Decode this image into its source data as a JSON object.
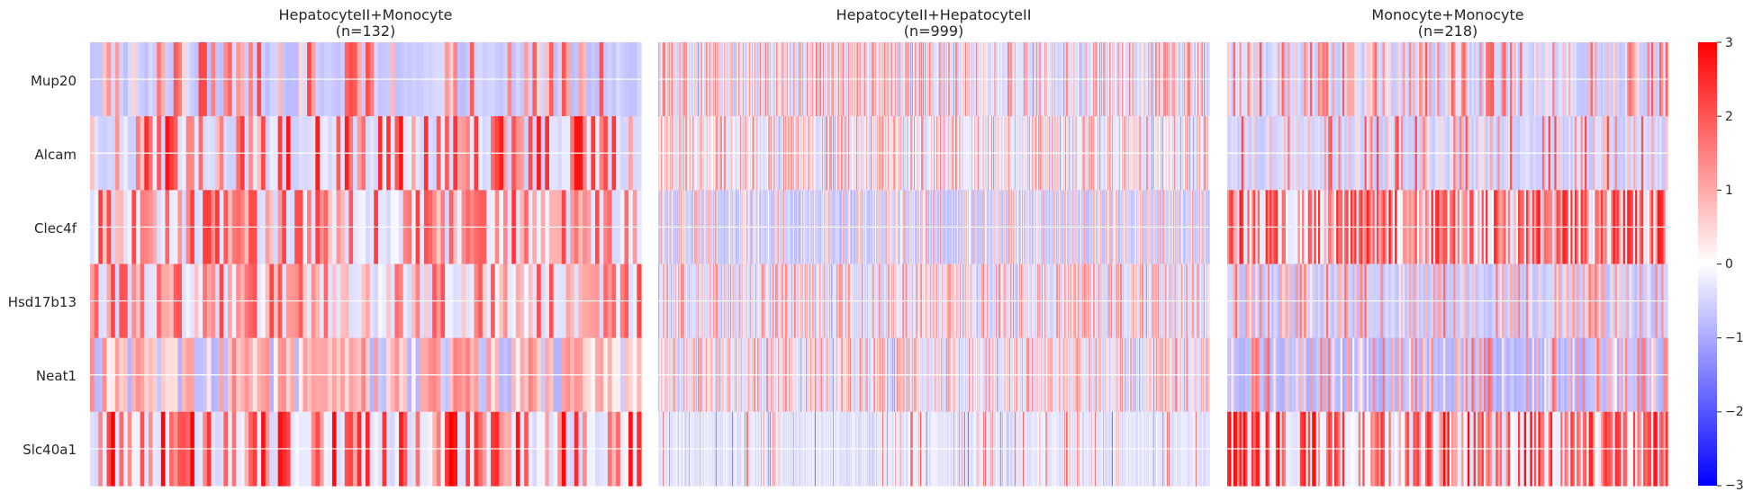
{
  "chart_data": {
    "type": "heatmap",
    "genes": [
      "Mup20",
      "Alcam",
      "Clec4f",
      "Hsd17b13",
      "Neat1",
      "Slc40a1"
    ],
    "panels": [
      {
        "title": "HepatocyteII+Monocyte",
        "subtitle": "(n=132)",
        "n_cells": 132,
        "gene_expression_pattern": [
          {
            "gene": "Mup20",
            "high_fraction": 0.38,
            "high_value": 2.2,
            "low_value": -0.6
          },
          {
            "gene": "Alcam",
            "high_fraction": 0.4,
            "high_value": 2.8,
            "low_value": -0.4
          },
          {
            "gene": "Clec4f",
            "high_fraction": 0.62,
            "high_value": 2.4,
            "low_value": -0.3
          },
          {
            "gene": "Hsd17b13",
            "high_fraction": 0.55,
            "high_value": 2.2,
            "low_value": -0.3
          },
          {
            "gene": "Neat1",
            "high_fraction": 0.7,
            "high_value": 1.6,
            "low_value": -0.7
          },
          {
            "gene": "Slc40a1",
            "high_fraction": 0.45,
            "high_value": 3.0,
            "low_value": -0.3
          }
        ]
      },
      {
        "title": "HepatocyteII+HepatocyteII",
        "subtitle": "(n=999)",
        "n_cells": 999,
        "gene_expression_pattern": [
          {
            "gene": "Mup20",
            "high_fraction": 0.45,
            "high_value": 1.6,
            "low_value": -0.4
          },
          {
            "gene": "Alcam",
            "high_fraction": 0.45,
            "high_value": 1.5,
            "low_value": -0.3
          },
          {
            "gene": "Clec4f",
            "high_fraction": 0.35,
            "high_value": 1.2,
            "low_value": -0.6
          },
          {
            "gene": "Hsd17b13",
            "high_fraction": 0.45,
            "high_value": 1.5,
            "low_value": -0.4
          },
          {
            "gene": "Neat1",
            "high_fraction": 0.5,
            "high_value": 1.5,
            "low_value": -0.4
          },
          {
            "gene": "Slc40a1",
            "high_fraction": 0.12,
            "high_value": 2.0,
            "low_value": -0.3
          }
        ]
      },
      {
        "title": "Monocyte+Monocyte",
        "subtitle": "(n=218)",
        "n_cells": 218,
        "gene_expression_pattern": [
          {
            "gene": "Mup20",
            "high_fraction": 0.4,
            "high_value": 2.0,
            "low_value": -0.5
          },
          {
            "gene": "Alcam",
            "high_fraction": 0.25,
            "high_value": 2.2,
            "low_value": -0.5
          },
          {
            "gene": "Clec4f",
            "high_fraction": 0.7,
            "high_value": 2.8,
            "low_value": -0.2
          },
          {
            "gene": "Hsd17b13",
            "high_fraction": 0.35,
            "high_value": 1.8,
            "low_value": -0.6
          },
          {
            "gene": "Neat1",
            "high_fraction": 0.35,
            "high_value": 1.8,
            "low_value": -0.8
          },
          {
            "gene": "Slc40a1",
            "high_fraction": 0.55,
            "high_value": 3.0,
            "low_value": -0.2
          }
        ]
      }
    ],
    "colorbar": {
      "vmin": -3,
      "vmax": 3,
      "ticks": [
        "3",
        "2",
        "1",
        "0",
        "−1",
        "−2",
        "−3"
      ],
      "colormap": "bwr"
    },
    "grid": true
  },
  "colors": {
    "low": "#0000ff",
    "mid": "#ffffff",
    "high": "#ff0000",
    "text": "#262626"
  }
}
